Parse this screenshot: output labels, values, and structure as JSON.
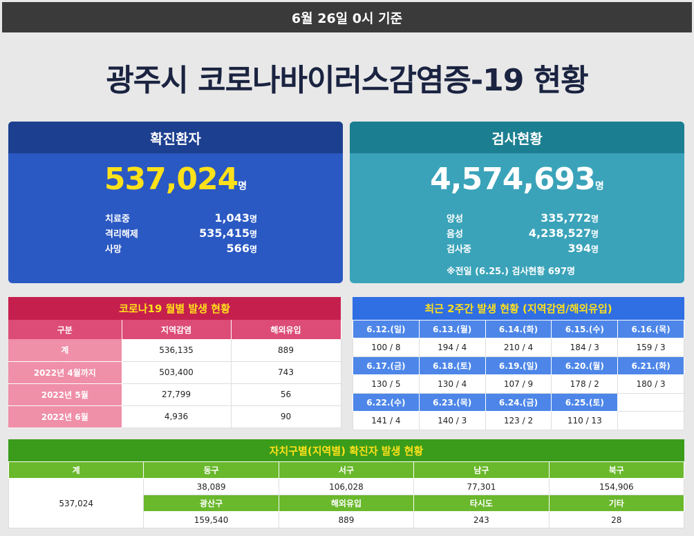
{
  "topbar": {
    "text": "6월 26일 0시 기준"
  },
  "title": "광주시 코로나바이러스감염증-19 현황",
  "confirmed": {
    "header": "확진환자",
    "total": "537,024",
    "unit": "명",
    "rows": [
      {
        "label": "치료중",
        "value": "1,043"
      },
      {
        "label": "격리해제",
        "value": "535,415"
      },
      {
        "label": "사망",
        "value": "566"
      }
    ]
  },
  "tests": {
    "header": "검사현황",
    "total": "4,574,693",
    "unit": "명",
    "rows": [
      {
        "label": "양성",
        "value": "335,772"
      },
      {
        "label": "음성",
        "value": "4,238,527"
      },
      {
        "label": "검사중",
        "value": "394"
      }
    ],
    "note": "※전일 (6.25.) 검사현황 697명"
  },
  "monthly": {
    "caption": "코로나19 월별 발생 현황",
    "headers": [
      "구분",
      "지역감염",
      "해외유입"
    ],
    "rows": [
      {
        "label": "계",
        "local": "536,135",
        "overseas": "889"
      },
      {
        "label": "2022년 4월까지",
        "local": "503,400",
        "overseas": "743"
      },
      {
        "label": "2022년 5월",
        "local": "27,799",
        "overseas": "56"
      },
      {
        "label": "2022년 6월",
        "local": "4,936",
        "overseas": "90"
      }
    ]
  },
  "recent": {
    "caption": "최근 2주간 발생 현황 (지역감염/해외유입)",
    "weeks": [
      {
        "dates": [
          "6.12.(일)",
          "6.13.(월)",
          "6.14.(화)",
          "6.15.(수)",
          "6.16.(목)"
        ],
        "values": [
          "100 / 8",
          "194 / 4",
          "210 / 4",
          "184 / 3",
          "159 / 3"
        ]
      },
      {
        "dates": [
          "6.17.(금)",
          "6.18.(토)",
          "6.19.(일)",
          "6.20.(월)",
          "6.21.(화)"
        ],
        "values": [
          "130 / 5",
          "130 / 4",
          "107 / 9",
          "178 / 2",
          "180 / 3"
        ]
      },
      {
        "dates": [
          "6.22.(수)",
          "6.23.(목)",
          "6.24.(금)",
          "6.25.(토)"
        ],
        "values": [
          "141 / 4",
          "140 / 3",
          "123 / 2",
          "110 / 13"
        ]
      }
    ]
  },
  "district": {
    "caption": "자치구별(지역별) 확진자 발생 현황",
    "total_label": "계",
    "total_value": "537,024",
    "row1_headers": [
      "동구",
      "서구",
      "남구",
      "북구"
    ],
    "row1_values": [
      "38,089",
      "106,028",
      "77,301",
      "154,906"
    ],
    "row2_headers": [
      "광산구",
      "해외유입",
      "타시도",
      "기타"
    ],
    "row2_values": [
      "159,540",
      "889",
      "243",
      "28"
    ]
  }
}
